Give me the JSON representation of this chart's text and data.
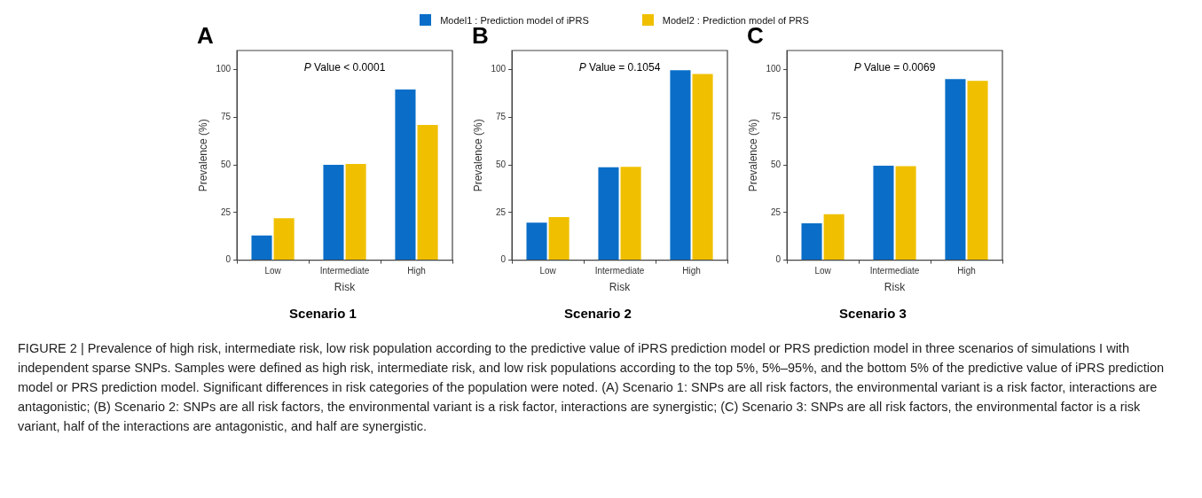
{
  "chart_data": [
    {
      "type": "bar",
      "title": "Scenario 1",
      "xlabel": "Risk",
      "ylabel": "Prevalence (%)",
      "categories": [
        "Low",
        "Intermediate",
        "High"
      ],
      "series": [
        {
          "name": "Model1 : Prediction model of iPRS",
          "color": "#0a6ec8",
          "values": [
            13,
            50,
            89.5
          ]
        },
        {
          "name": "Model2 : Prediction model of PRS",
          "color": "#f0c000",
          "values": [
            22,
            50.5,
            71
          ]
        }
      ],
      "ylim": [
        0,
        110
      ],
      "yticks": [
        0,
        25,
        50,
        75,
        100
      ],
      "legend": "top",
      "annotations": [
        "A",
        "P Value < 0.0001"
      ]
    },
    {
      "type": "bar",
      "title": "Scenario 2",
      "xlabel": "Risk",
      "ylabel": "Prevalence (%)",
      "categories": [
        "Low",
        "Intermediate",
        "High"
      ],
      "series": [
        {
          "color": "#0a6ec8",
          "values": [
            19.7,
            48.7,
            99.7
          ]
        },
        {
          "color": "#f0c000",
          "values": [
            22.6,
            49,
            97.7
          ]
        }
      ],
      "ylim": [
        0,
        110
      ],
      "yticks": [
        0,
        25,
        50,
        75,
        100
      ],
      "annotations": [
        "B",
        "P Value = 0.1054"
      ]
    },
    {
      "type": "bar",
      "title": "Scenario 3",
      "xlabel": "Risk",
      "ylabel": "Prevalence (%)",
      "categories": [
        "Low",
        "Intermediate",
        "High"
      ],
      "series": [
        {
          "color": "#0a6ec8",
          "values": [
            19.3,
            49.6,
            95
          ]
        },
        {
          "color": "#f0c000",
          "values": [
            24.1,
            49.3,
            94.1
          ]
        }
      ],
      "ylim": [
        0,
        110
      ],
      "yticks": [
        0,
        25,
        50,
        75,
        100
      ],
      "annotations": [
        "C",
        "P Value = 0.0069",
        "FIGURE 2 | Prevalence of high risk, intermediate risk, low risk population according to the predictive value of iPRS prediction model or PRS prediction model in three scenarios of simulations I with independent sparse SNPs. Samples were defined as high risk, intermediate risk, and low risk populations according to the top 5%, 5%–95%, and the bottom 5% of the predictive value of iPRS prediction model or PRS prediction model. Significant differences in risk categories of the population were noted. (A) Scenario 1: SNPs are all risk factors, the environmental variant is a risk factor, interactions are antagonistic; (B) Scenario 2: SNPs are all risk factors, the environmental variant is a risk factor, interactions are synergistic; (C) Scenario 3: SNPs are all risk factors, the environmental factor is a risk variant, half of the interactions are antagonistic, and half are synergistic."
      ]
    }
  ]
}
